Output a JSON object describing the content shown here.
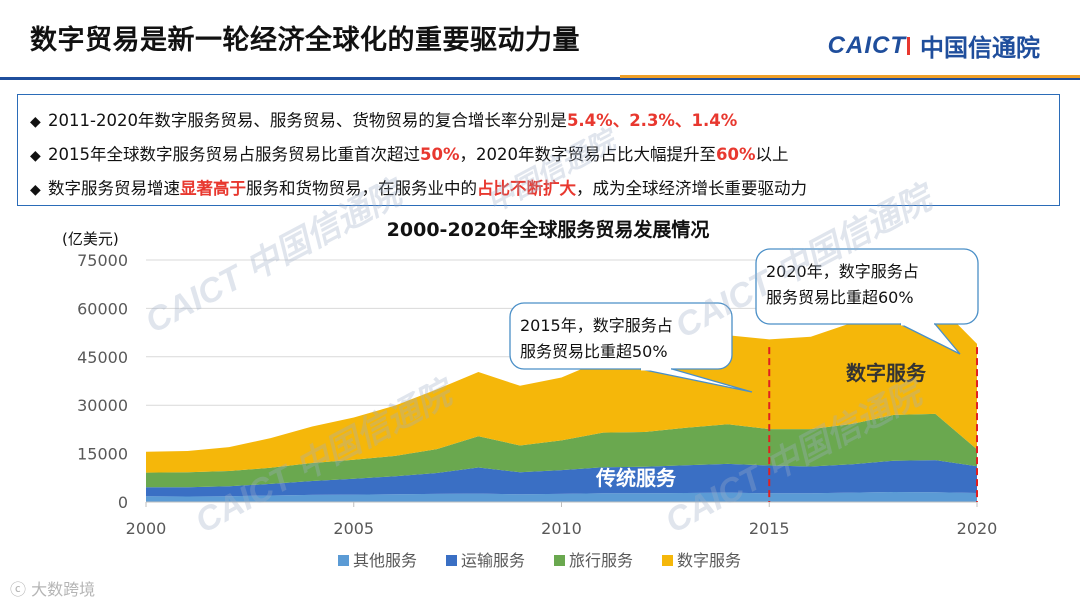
{
  "page": {
    "title": "数字贸易是新一轮经济全球化的重要驱动力量",
    "logo_en": "CAICT",
    "logo_cn": "中国信通院",
    "watermark_text": "CAICT 中国信通院",
    "footer_watermark": "大数跨境"
  },
  "bullets": [
    {
      "pre": "2011-2020年数字服务贸易、服务贸易、货物贸易的复合增长率分别是",
      "hl": "5.4%、2.3%、1.4%",
      "post": ""
    },
    {
      "pre": "2015年全球数字服务贸易占服务贸易比重首次超过",
      "hl": "50%",
      "mid": "，2020年数字贸易占比大幅提升至",
      "hl2": "60%",
      "post": "以上"
    },
    {
      "pre": "数字服务贸易增速",
      "hl": "显著高于",
      "mid": "服务和货物贸易，在服务业中的",
      "hl2": "占比不断扩大",
      "post": "，成为全球经济增长重要驱动力"
    }
  ],
  "chart_data": {
    "type": "area",
    "stacked": true,
    "title": "2000-2020年全球服务贸易发展情况",
    "ylabel": "(亿美元)",
    "xlim": [
      2000,
      2020
    ],
    "ylim": [
      0,
      75000
    ],
    "x": [
      2000,
      2001,
      2002,
      2003,
      2004,
      2005,
      2006,
      2007,
      2008,
      2009,
      2010,
      2011,
      2012,
      2013,
      2014,
      2015,
      2016,
      2017,
      2018,
      2019,
      2020
    ],
    "x_ticks": [
      2000,
      2005,
      2010,
      2015,
      2020
    ],
    "y_ticks": [
      0,
      15000,
      30000,
      45000,
      60000,
      75000
    ],
    "series": [
      {
        "name": "其他服务",
        "color": "#5b9bd5",
        "values": [
          1800,
          1700,
          1800,
          2000,
          2200,
          2300,
          2400,
          2500,
          2600,
          2400,
          2500,
          2700,
          2700,
          2800,
          2900,
          2700,
          2700,
          2900,
          3100,
          3000,
          2800
        ]
      },
      {
        "name": "运输服务",
        "color": "#3a6fc4",
        "values": [
          2800,
          2900,
          3100,
          3600,
          4300,
          4900,
          5600,
          6500,
          8100,
          6800,
          7400,
          8100,
          8200,
          8600,
          8900,
          8600,
          8300,
          8800,
          9700,
          10000,
          8300
        ]
      },
      {
        "name": "旅行服务",
        "color": "#6aa84f",
        "values": [
          4500,
          4600,
          4700,
          5000,
          5600,
          5900,
          6300,
          7400,
          9700,
          8300,
          9200,
          10700,
          10800,
          11600,
          12300,
          11300,
          11600,
          12500,
          14200,
          14300,
          5200
        ]
      },
      {
        "name": "数字服务",
        "color": "#f5b70a",
        "values": [
          6500,
          6600,
          7400,
          9200,
          11300,
          13100,
          15600,
          18500,
          19900,
          18500,
          19500,
          22500,
          24600,
          26100,
          27600,
          27800,
          28600,
          31400,
          34000,
          34700,
          32700
        ]
      }
    ],
    "labels": {
      "digital": "数字服务",
      "traditional": "传统服务"
    },
    "callouts": [
      {
        "text_line1": "2015年，数字服务占",
        "text_line2": "服务贸易比重超50%",
        "x": 2015
      },
      {
        "text_line1": "2020年，数字服务占",
        "text_line2": "服务贸易比重超60%",
        "x": 2020
      }
    ],
    "legend_position": "bottom"
  }
}
